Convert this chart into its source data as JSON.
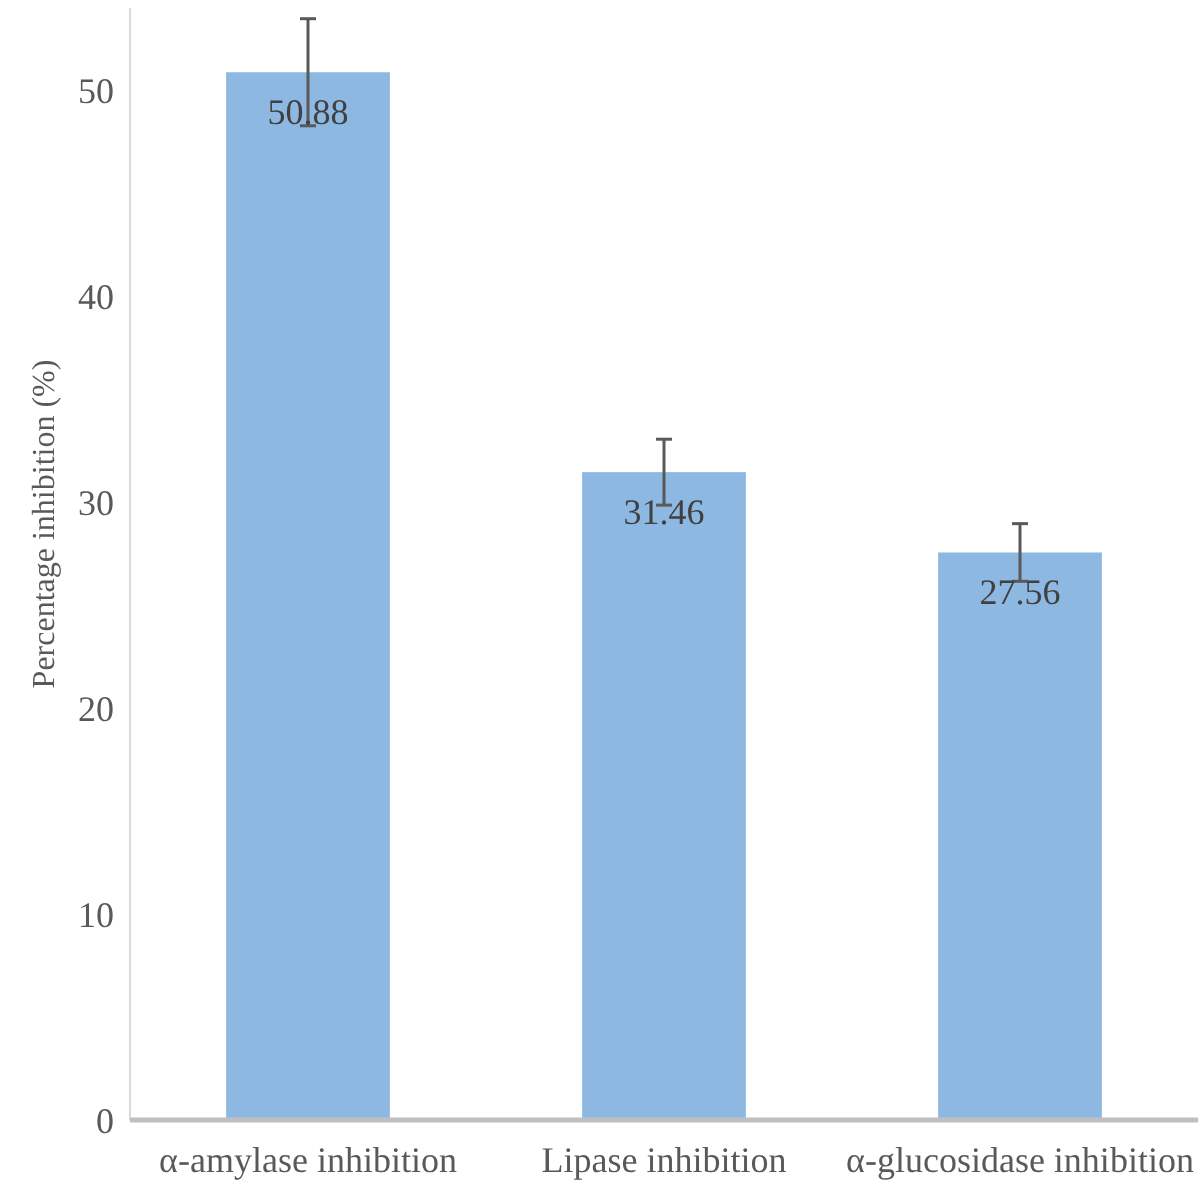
{
  "chart_data": {
    "type": "bar",
    "ylabel": "Percentage inhibition (%)",
    "categories": [
      "α-amylase inhibition",
      "Lipase inhibition",
      "α-glucosidase inhibition"
    ],
    "values": [
      50.88,
      31.46,
      27.56
    ],
    "errors": [
      2.6,
      1.6,
      1.4
    ],
    "color": "#8db8e2",
    "data_labels": true,
    "ylim": [
      0,
      54
    ],
    "yticks": [
      0,
      10,
      20,
      30,
      40,
      50
    ],
    "grid": false
  }
}
